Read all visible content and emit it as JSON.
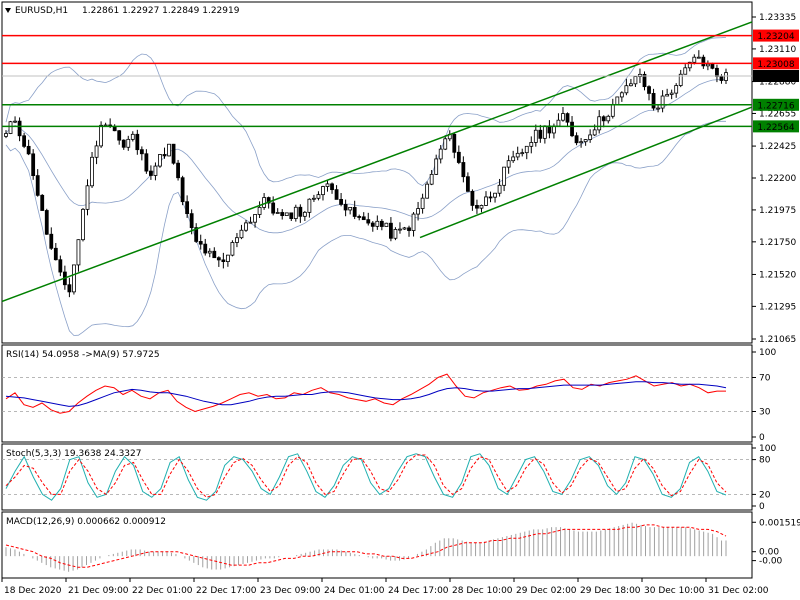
{
  "header": {
    "symbol_tf": "EURUSD,H1",
    "ohlc": "1.22861 1.22927 1.22849 1.22919"
  },
  "colors": {
    "resistance": "#ff0000",
    "channel": "#008000",
    "bollinger": "#8aa0c8",
    "rsi": "#ff0000",
    "rsi_ma": "#0000c0",
    "stoch_main": "#20b0b0",
    "stoch_signal": "#ff0000",
    "macd_hist": "#a0a0a0",
    "macd_signal": "#ff0000"
  },
  "chart_data": [
    {
      "type": "candlestick",
      "title": "EURUSD,H1",
      "ylim": [
        1.21065,
        1.23335
      ],
      "y_ticks": [
        "1.23335",
        "1.23110",
        "1.22880",
        "1.22655",
        "1.22425",
        "1.22200",
        "1.21975",
        "1.21750",
        "1.21520",
        "1.21295",
        "1.21065"
      ],
      "x_ticks": [
        "18 Dec 2020",
        "21 Dec 09:00",
        "22 Dec 01:00",
        "22 Dec 17:00",
        "23 Dec 09:00",
        "24 Dec 01:00",
        "24 Dec 17:00",
        "28 Dec 10:00",
        "29 Dec 02:00",
        "29 Dec 18:00",
        "30 Dec 10:00",
        "31 Dec 02:00"
      ],
      "levels": {
        "resistance_1": "1.23204",
        "resistance_2": "1.23008",
        "current": "1.22919",
        "support_1": "1.22716",
        "support_2": "1.22564"
      },
      "close_path": [
        1.225,
        1.2262,
        1.2245,
        1.2225,
        1.2195,
        1.217,
        1.215,
        1.214,
        1.2175,
        1.2215,
        1.2245,
        1.2262,
        1.2255,
        1.224,
        1.225,
        1.2235,
        1.2225,
        1.2232,
        1.2244,
        1.222,
        1.2195,
        1.2175,
        1.217,
        1.2162,
        1.2158,
        1.217,
        1.2185,
        1.219,
        1.2198,
        1.2205,
        1.2195,
        1.219,
        1.2198,
        1.2195,
        1.2205,
        1.2215,
        1.2212,
        1.2208,
        1.2196,
        1.2192,
        1.2188,
        1.219,
        1.2185,
        1.218,
        1.2182,
        1.2188,
        1.22,
        1.2218,
        1.2235,
        1.225,
        1.224,
        1.2215,
        1.22,
        1.2202,
        1.221,
        1.222,
        1.223,
        1.2235,
        1.2245,
        1.225,
        1.2255,
        1.2258,
        1.2262,
        1.225,
        1.2245,
        1.2255,
        1.226,
        1.2268,
        1.2275,
        1.2283,
        1.2293,
        1.2285,
        1.227,
        1.2275,
        1.2283,
        1.229,
        1.23,
        1.2305,
        1.2298,
        1.2293,
        1.2292
      ]
    },
    {
      "type": "line",
      "title": "RSI(14) 54.0958  ->MA(9) 57.9725",
      "ylim": [
        0,
        100
      ],
      "y_ticks": [
        "100",
        "70",
        "30",
        "0"
      ],
      "levels": [
        70,
        30
      ],
      "series": [
        {
          "name": "RSI(14)",
          "values": [
            45,
            52,
            38,
            35,
            40,
            32,
            28,
            30,
            40,
            48,
            55,
            60,
            58,
            50,
            55,
            48,
            45,
            52,
            55,
            42,
            35,
            30,
            33,
            36,
            40,
            45,
            50,
            52,
            48,
            50,
            45,
            46,
            52,
            50,
            55,
            58,
            52,
            50,
            46,
            44,
            42,
            45,
            40,
            38,
            45,
            50,
            56,
            62,
            70,
            74,
            60,
            48,
            46,
            52,
            55,
            58,
            60,
            55,
            56,
            60,
            62,
            66,
            68,
            58,
            56,
            62,
            60,
            64,
            66,
            68,
            72,
            66,
            60,
            62,
            64,
            60,
            62,
            58,
            52,
            54,
            54
          ]
        },
        {
          "name": "MA(9)",
          "values": [
            48,
            47,
            46,
            44,
            42,
            40,
            38,
            36,
            37,
            40,
            44,
            48,
            52,
            54,
            56,
            55,
            53,
            52,
            52,
            50,
            48,
            45,
            42,
            40,
            38,
            38,
            40,
            42,
            45,
            47,
            48,
            48,
            49,
            50,
            50,
            52,
            53,
            53,
            52,
            50,
            48,
            46,
            45,
            44,
            44,
            45,
            47,
            50,
            54,
            57,
            58,
            57,
            55,
            54,
            54,
            55,
            56,
            57,
            57,
            58,
            59,
            60,
            61,
            61,
            61,
            61,
            61,
            62,
            63,
            64,
            65,
            65,
            64,
            64,
            63,
            62,
            62,
            62,
            61,
            60,
            58
          ]
        }
      ]
    },
    {
      "type": "line",
      "title": "Stoch(5,3,3) 19.3638 24.3327",
      "ylim": [
        0,
        100
      ],
      "y_ticks": [
        "100",
        "80",
        "20",
        "0"
      ],
      "levels": [
        80,
        20
      ],
      "series": [
        {
          "name": "Stoch main",
          "values": [
            30,
            60,
            85,
            50,
            20,
            10,
            30,
            80,
            85,
            40,
            15,
            20,
            60,
            85,
            70,
            25,
            15,
            30,
            75,
            85,
            45,
            15,
            10,
            25,
            70,
            85,
            80,
            60,
            30,
            20,
            50,
            85,
            90,
            60,
            25,
            15,
            35,
            70,
            85,
            80,
            40,
            20,
            30,
            60,
            85,
            90,
            85,
            50,
            20,
            15,
            40,
            85,
            90,
            70,
            30,
            20,
            50,
            80,
            85,
            60,
            25,
            20,
            45,
            80,
            85,
            70,
            35,
            20,
            40,
            85,
            80,
            55,
            20,
            15,
            30,
            75,
            85,
            60,
            25,
            19
          ]
        },
        {
          "name": "Stoch signal",
          "values": [
            35,
            50,
            70,
            65,
            40,
            20,
            20,
            60,
            80,
            60,
            30,
            20,
            40,
            70,
            75,
            45,
            20,
            20,
            55,
            80,
            60,
            30,
            15,
            20,
            50,
            75,
            82,
            70,
            45,
            25,
            35,
            70,
            85,
            75,
            40,
            20,
            25,
            55,
            80,
            82,
            60,
            30,
            25,
            45,
            75,
            88,
            88,
            70,
            35,
            20,
            30,
            65,
            85,
            80,
            50,
            25,
            35,
            65,
            82,
            72,
            40,
            22,
            35,
            65,
            82,
            75,
            50,
            25,
            30,
            65,
            82,
            65,
            35,
            18,
            25,
            55,
            80,
            72,
            40,
            24
          ]
        }
      ]
    },
    {
      "type": "bar",
      "title": "MACD(12,26,9) 0.000662 0.000912",
      "ylim": [
        -0.0008,
        0.0018
      ],
      "y_ticks": [
        "0.001519",
        "0.00",
        "-0.00"
      ],
      "series": [
        {
          "name": "MACD histogram",
          "values": [
            0.0004,
            0.0003,
            0.0001,
            -0.0001,
            -0.0003,
            -0.0005,
            -0.0006,
            -0.0007,
            -0.0006,
            -0.0004,
            -0.0002,
            0.0,
            0.0001,
            0.0002,
            0.0003,
            0.0003,
            0.0002,
            0.0002,
            0.0002,
            0.0001,
            -0.0001,
            -0.0003,
            -0.0005,
            -0.0006,
            -0.0006,
            -0.0005,
            -0.0004,
            -0.0003,
            -0.0002,
            -0.0001,
            -0.0001,
            0.0,
            0.0,
            0.0001,
            0.0002,
            0.0003,
            0.0003,
            0.0003,
            0.0002,
            0.0001,
            0.0,
            -0.0001,
            -0.0001,
            -0.0002,
            -0.0002,
            -0.0001,
            0.0001,
            0.0003,
            0.0006,
            0.0008,
            0.0008,
            0.0007,
            0.0006,
            0.0006,
            0.0007,
            0.0008,
            0.0009,
            0.001,
            0.0011,
            0.0012,
            0.0012,
            0.0013,
            0.0013,
            0.0012,
            0.0011,
            0.0011,
            0.0011,
            0.0012,
            0.0013,
            0.0014,
            0.0015,
            0.0014,
            0.0013,
            0.0013,
            0.0013,
            0.0013,
            0.0013,
            0.0012,
            0.0011,
            0.001,
            0.0007
          ]
        },
        {
          "name": "Signal",
          "values": [
            0.0005,
            0.0004,
            0.0003,
            0.0002,
            0.0,
            -0.0001,
            -0.0003,
            -0.0004,
            -0.0005,
            -0.0005,
            -0.0004,
            -0.0003,
            -0.0002,
            -0.0001,
            0.0,
            0.0001,
            0.0002,
            0.0002,
            0.0002,
            0.0002,
            0.0001,
            0.0,
            -0.0001,
            -0.0002,
            -0.0003,
            -0.0004,
            -0.0004,
            -0.0004,
            -0.0003,
            -0.0003,
            -0.0002,
            -0.0001,
            -0.0001,
            0.0,
            0.0,
            0.0001,
            0.0002,
            0.0002,
            0.0002,
            0.0002,
            0.0001,
            0.0001,
            0.0,
            0.0,
            -0.0001,
            -0.0001,
            0.0,
            0.0001,
            0.0002,
            0.0004,
            0.0005,
            0.0006,
            0.0006,
            0.0006,
            0.0007,
            0.0007,
            0.0008,
            0.0008,
            0.0009,
            0.001,
            0.001,
            0.0011,
            0.0012,
            0.0012,
            0.0012,
            0.0012,
            0.0012,
            0.0012,
            0.0012,
            0.0013,
            0.0013,
            0.0014,
            0.0014,
            0.0013,
            0.0013,
            0.0013,
            0.0013,
            0.0012,
            0.0012,
            0.0011,
            0.0009
          ]
        }
      ]
    }
  ]
}
